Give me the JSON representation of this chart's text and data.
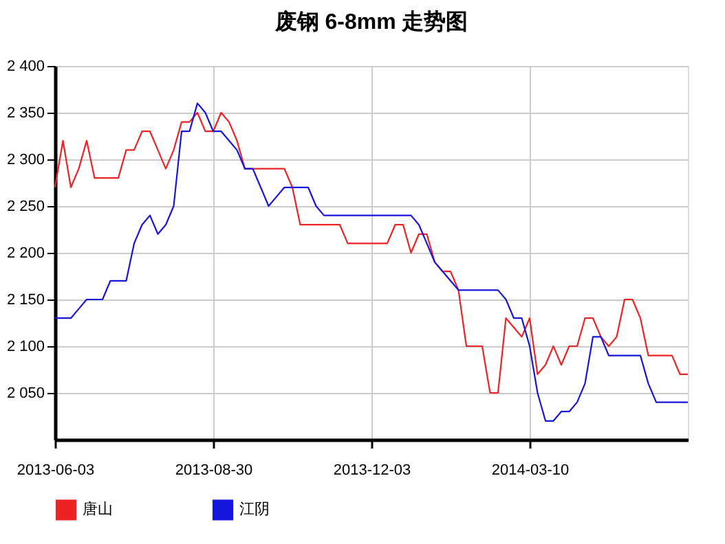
{
  "chart_data": {
    "type": "line",
    "title": "废钢 6-8mm 走势图",
    "categories": [
      "2013-06-03",
      null,
      null,
      null,
      null,
      null,
      null,
      null,
      null,
      null,
      null,
      null,
      null,
      null,
      null,
      null,
      null,
      null,
      null,
      null,
      "2013-08-30",
      null,
      null,
      null,
      null,
      null,
      null,
      null,
      null,
      null,
      null,
      null,
      null,
      null,
      null,
      null,
      null,
      null,
      null,
      null,
      "2013-12-03",
      null,
      null,
      null,
      null,
      null,
      null,
      null,
      null,
      null,
      null,
      null,
      null,
      null,
      null,
      null,
      null,
      null,
      null,
      null,
      "2014-03-10",
      null,
      null,
      null,
      null,
      null,
      null,
      null,
      null,
      null,
      null,
      null,
      null,
      null,
      null,
      null,
      null,
      null,
      null,
      null,
      null
    ],
    "ylim": [
      2000,
      2400
    ],
    "yticks": [
      {
        "value": 2050,
        "label": "2 050"
      },
      {
        "value": 2100,
        "label": "2 100"
      },
      {
        "value": 2150,
        "label": "2 150"
      },
      {
        "value": 2200,
        "label": "2 200"
      },
      {
        "value": 2250,
        "label": "2 250"
      },
      {
        "value": 2300,
        "label": "2 300"
      },
      {
        "value": 2350,
        "label": "2 350"
      },
      {
        "value": 2400,
        "label": "2 400"
      }
    ],
    "grid": true,
    "legend": "bottom",
    "series": [
      {
        "name": "唐山",
        "color": "#ee2222",
        "values": [
          2270,
          2320,
          2270,
          2290,
          2320,
          2280,
          2280,
          2280,
          2280,
          2310,
          2310,
          2330,
          2330,
          2310,
          2290,
          2310,
          2340,
          2340,
          2350,
          2330,
          2330,
          2350,
          2340,
          2320,
          2290,
          2290,
          2290,
          2290,
          2290,
          2290,
          2270,
          2230,
          2230,
          2230,
          2230,
          2230,
          2230,
          2210,
          2210,
          2210,
          2210,
          2210,
          2210,
          2230,
          2230,
          2200,
          2220,
          2220,
          2190,
          2180,
          2180,
          2160,
          2100,
          2100,
          2100,
          2050,
          2050,
          2130,
          2120,
          2110,
          2130,
          2070,
          2080,
          2100,
          2080,
          2100,
          2100,
          2130,
          2130,
          2110,
          2100,
          2110,
          2150,
          2150,
          2130,
          2090,
          2090,
          2090,
          2090,
          2070,
          2070
        ]
      },
      {
        "name": "江阴",
        "color": "#1515dd",
        "values": [
          2130,
          2130,
          2130,
          2140,
          2150,
          2150,
          2150,
          2170,
          2170,
          2170,
          2210,
          2230,
          2240,
          2220,
          2230,
          2250,
          2330,
          2330,
          2360,
          2350,
          2330,
          2330,
          2320,
          2310,
          2290,
          2290,
          2270,
          2250,
          2260,
          2270,
          2270,
          2270,
          2270,
          2250,
          2240,
          2240,
          2240,
          2240,
          2240,
          2240,
          2240,
          2240,
          2240,
          2240,
          2240,
          2240,
          2230,
          2210,
          2190,
          2180,
          2170,
          2160,
          2160,
          2160,
          2160,
          2160,
          2160,
          2150,
          2130,
          2130,
          2100,
          2050,
          2020,
          2020,
          2030,
          2030,
          2040,
          2060,
          2110,
          2110,
          2090,
          2090,
          2090,
          2090,
          2090,
          2060,
          2040,
          2040,
          2040,
          2040,
          2040
        ]
      }
    ]
  }
}
